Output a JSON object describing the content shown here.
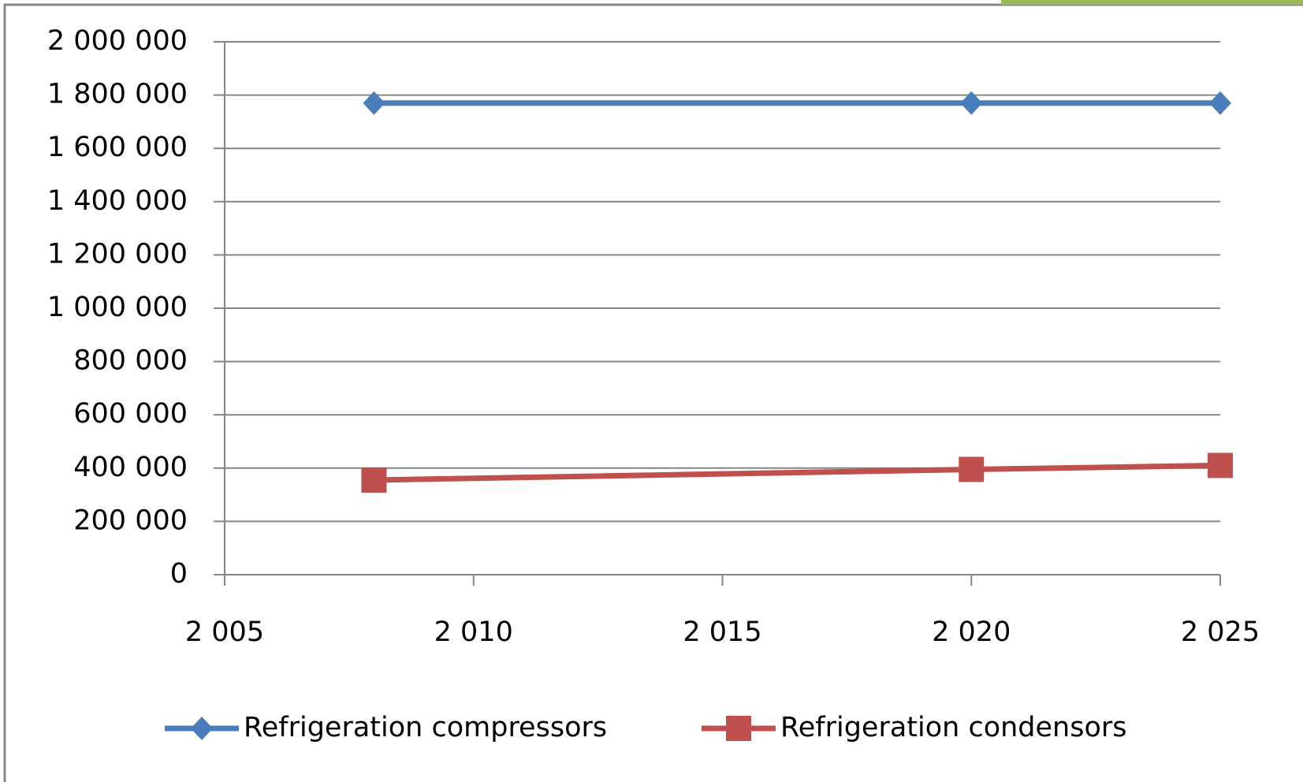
{
  "chart_data": {
    "type": "line",
    "xlim": [
      2005,
      2025
    ],
    "xticks": [
      {
        "value": 2005,
        "label": "2 005"
      },
      {
        "value": 2010,
        "label": "2 010"
      },
      {
        "value": 2015,
        "label": "2 015"
      },
      {
        "value": 2020,
        "label": "2 020"
      },
      {
        "value": 2025,
        "label": "2 025"
      }
    ],
    "ylim": [
      0,
      2000000
    ],
    "yticks": [
      0,
      {
        "value": 200000,
        "label": "200 000"
      },
      {
        "value": 400000,
        "label": "400 000"
      },
      {
        "value": 600000,
        "label": "600 000"
      },
      {
        "value": 800000,
        "label": "800 000"
      },
      {
        "value": 1000000,
        "label": "1 000 000"
      },
      {
        "value": 1200000,
        "label": "1 200 000"
      },
      {
        "value": 1400000,
        "label": "1 400 000"
      },
      {
        "value": 1600000,
        "label": "1 600 000"
      },
      {
        "value": 1800000,
        "label": "1 800 000"
      },
      {
        "value": 2000000,
        "label": "2 000 000"
      }
    ],
    "grid": true,
    "legend": "bottom",
    "x": [
      2008,
      2020,
      2025
    ],
    "series": [
      {
        "name": "Refrigeration compressors",
        "color": "#4a7ebb",
        "marker": "diamond",
        "values": [
          1770000,
          1770000,
          1770000
        ]
      },
      {
        "name": "Refrigeration condensors",
        "color": "#c0504d",
        "marker": "square",
        "values": [
          355000,
          395000,
          410000
        ]
      }
    ]
  }
}
